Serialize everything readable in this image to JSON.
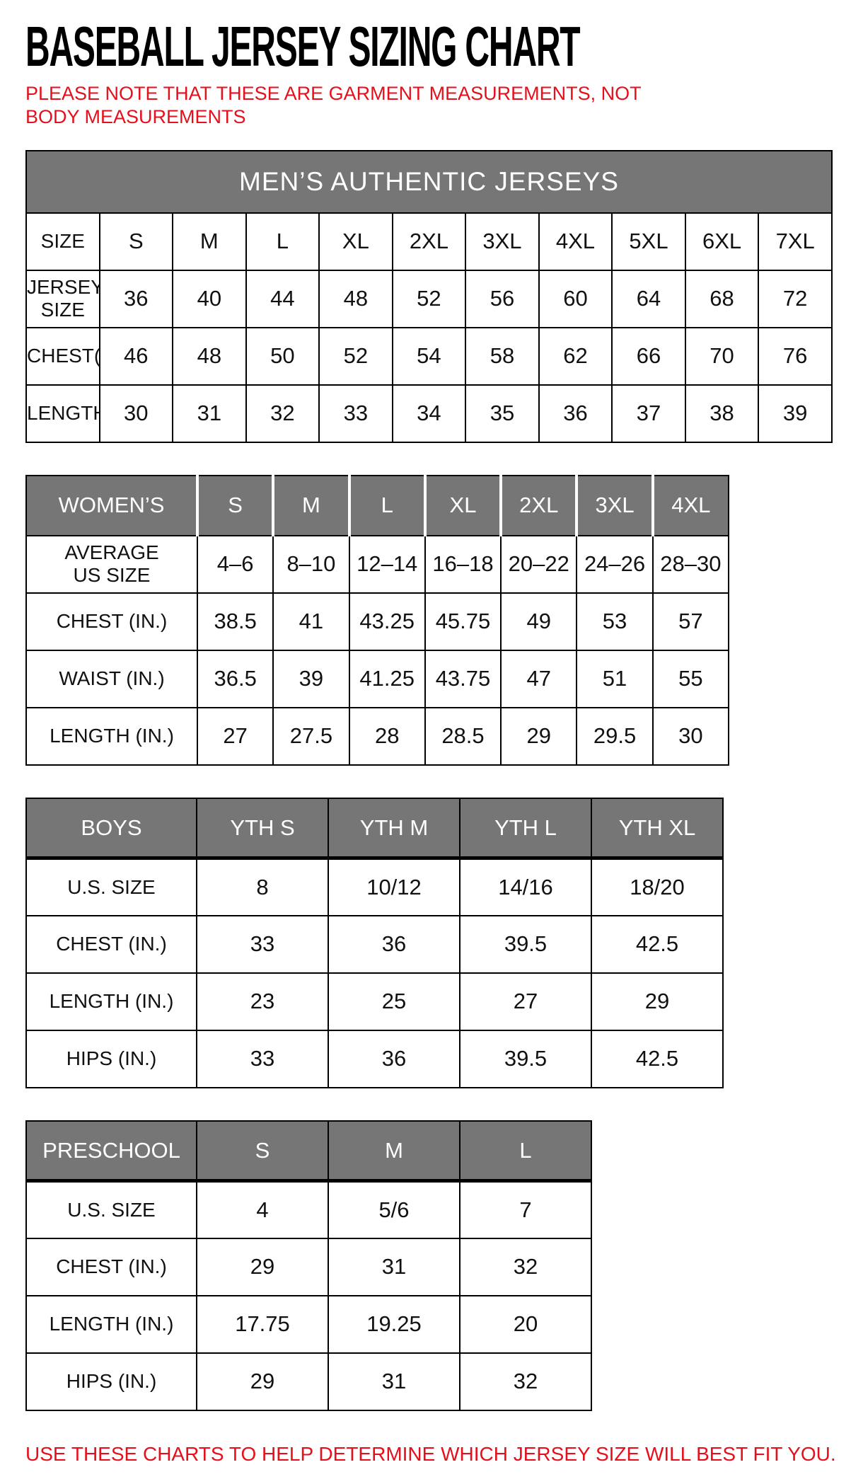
{
  "page": {
    "title": "BASEBALL JERSEY SIZING CHART",
    "note": "PLEASE NOTE THAT THESE ARE GARMENT MEASUREMENTS, NOT BODY MEASUREMENTS",
    "footer": "USE THESE CHARTS TO HELP DETERMINE WHICH JERSEY SIZE WILL BEST FIT YOU."
  },
  "colors": {
    "accent_red": "#e5101b",
    "header_gray": "#767676",
    "header_text": "#ffffff",
    "body_text": "#111111",
    "border": "#000000"
  },
  "tables": {
    "mens": {
      "banner": "MEN’S AUTHENTIC JERSEYS",
      "rows": [
        {
          "label": "SIZE",
          "values": [
            "S",
            "M",
            "L",
            "XL",
            "2XL",
            "3XL",
            "4XL",
            "5XL",
            "6XL",
            "7XL"
          ]
        },
        {
          "label": "JERSEY SIZE",
          "values": [
            "36",
            "40",
            "44",
            "48",
            "52",
            "56",
            "60",
            "64",
            "68",
            "72"
          ]
        },
        {
          "label": "CHEST(IN.)",
          "values": [
            "46",
            "48",
            "50",
            "52",
            "54",
            "58",
            "62",
            "66",
            "70",
            "76"
          ]
        },
        {
          "label": "LENGTH(IN.)",
          "values": [
            "30",
            "31",
            "32",
            "33",
            "34",
            "35",
            "36",
            "37",
            "38",
            "39"
          ]
        }
      ]
    },
    "womens": {
      "header": [
        "WOMEN’S",
        "S",
        "M",
        "L",
        "XL",
        "2XL",
        "3XL",
        "4XL"
      ],
      "rows": [
        {
          "label": "AVERAGE\nUS SIZE",
          "values": [
            "4–6",
            "8–10",
            "12–14",
            "16–18",
            "20–22",
            "24–26",
            "28–30"
          ]
        },
        {
          "label": "CHEST (IN.)",
          "values": [
            "38.5",
            "41",
            "43.25",
            "45.75",
            "49",
            "53",
            "57"
          ]
        },
        {
          "label": "WAIST (IN.)",
          "values": [
            "36.5",
            "39",
            "41.25",
            "43.75",
            "47",
            "51",
            "55"
          ]
        },
        {
          "label": "LENGTH (IN.)",
          "values": [
            "27",
            "27.5",
            "28",
            "28.5",
            "29",
            "29.5",
            "30"
          ]
        }
      ]
    },
    "boys": {
      "header": [
        "BOYS",
        "YTH S",
        "YTH M",
        "YTH L",
        "YTH XL"
      ],
      "rows": [
        {
          "label": "U.S. SIZE",
          "values": [
            "8",
            "10/12",
            "14/16",
            "18/20"
          ]
        },
        {
          "label": "CHEST (IN.)",
          "values": [
            "33",
            "36",
            "39.5",
            "42.5"
          ]
        },
        {
          "label": "LENGTH (IN.)",
          "values": [
            "23",
            "25",
            "27",
            "29"
          ]
        },
        {
          "label": "HIPS (IN.)",
          "values": [
            "33",
            "36",
            "39.5",
            "42.5"
          ]
        }
      ]
    },
    "preschool": {
      "header": [
        "PRESCHOOL",
        "S",
        "M",
        "L"
      ],
      "rows": [
        {
          "label": "U.S. SIZE",
          "values": [
            "4",
            "5/6",
            "7"
          ]
        },
        {
          "label": "CHEST (IN.)",
          "values": [
            "29",
            "31",
            "32"
          ]
        },
        {
          "label": "LENGTH (IN.)",
          "values": [
            "17.75",
            "19.25",
            "20"
          ]
        },
        {
          "label": "HIPS (IN.)",
          "values": [
            "29",
            "31",
            "32"
          ]
        }
      ]
    }
  }
}
